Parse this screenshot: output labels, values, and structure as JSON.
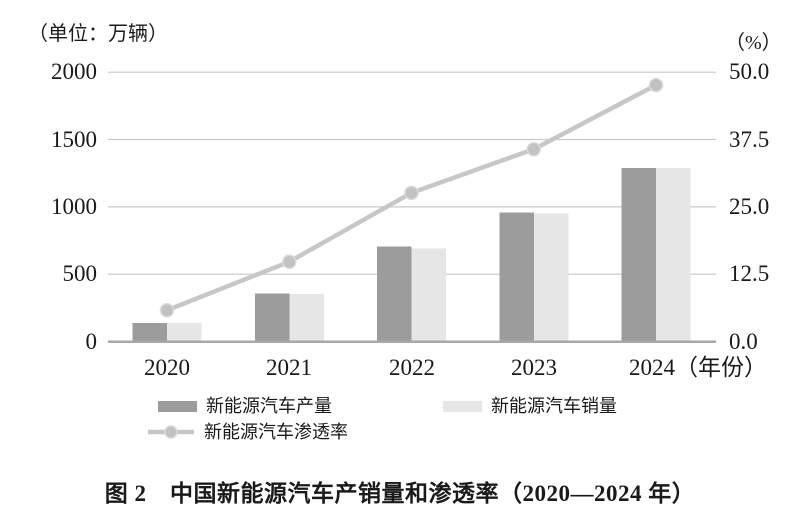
{
  "unit_left": "（单位：万辆）",
  "unit_right": "（%）",
  "y_left_ticks": [
    "2000",
    "1500",
    "1000",
    "500",
    "0"
  ],
  "y_right_ticks": [
    "50.0",
    "37.5",
    "25.0",
    "12.5",
    "0.0"
  ],
  "x_suffix": "（年份）",
  "legend": {
    "production_label": "新能源汽车产量",
    "sales_label": "新能源汽车销量",
    "penetration_label": "新能源汽车渗透率"
  },
  "caption": "图 2　中国新能源汽车产销量和渗透率（2020—2024 年）",
  "colors": {
    "production_bar": "#9c9c9c",
    "sales_bar": "#e6e6e6",
    "penetration_line": "#c7c7c7",
    "penetration_marker": "#c2c2c2",
    "gridline": "#c9c9c9",
    "axis_baseline": "#a8a8a8"
  },
  "chart_data": {
    "type": "bar",
    "subtype": "grouped bars + line on secondary axis",
    "title": "图 2　中国新能源汽车产销量和渗透率（2020—2024 年）",
    "categories": [
      "2020",
      "2021",
      "2022",
      "2023",
      "2024"
    ],
    "series": [
      {
        "name": "新能源汽车产量",
        "type": "bar",
        "axis": "left",
        "color": "#9c9c9c",
        "values": [
          137,
          355,
          706,
          959,
          1289
        ]
      },
      {
        "name": "新能源汽车销量",
        "type": "bar",
        "axis": "left",
        "color": "#e6e6e6",
        "values": [
          137,
          352,
          689,
          950,
          1287
        ]
      },
      {
        "name": "新能源汽车渗透率",
        "type": "line",
        "axis": "right",
        "color": "#c7c7c7",
        "values": [
          5.8,
          14.8,
          27.6,
          35.7,
          47.6
        ]
      }
    ],
    "left_axis": {
      "label": "（单位：万辆）",
      "range": [
        0,
        2000
      ],
      "ticks": [
        0,
        500,
        1000,
        1500,
        2000
      ]
    },
    "right_axis": {
      "label": "（%）",
      "range": [
        0,
        50.0
      ],
      "ticks": [
        0.0,
        12.5,
        25.0,
        37.5,
        50.0
      ]
    },
    "xlabel": "（年份）",
    "grid": true,
    "legend_position": "bottom"
  }
}
